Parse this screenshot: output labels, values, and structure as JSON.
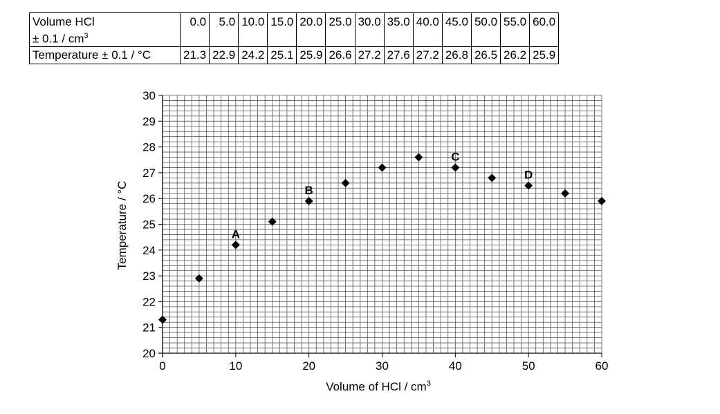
{
  "table": {
    "row1_header_line1": "Volume HCl",
    "row1_header_line2": "± 0.1 / cm",
    "row1_header_sup": "3",
    "row2_header": "Temperature ± 0.1 / °C",
    "volumes": [
      "0.0",
      "5.0",
      "10.0",
      "15.0",
      "20.0",
      "25.0",
      "30.0",
      "35.0",
      "40.0",
      "45.0",
      "50.0",
      "55.0",
      "60.0"
    ],
    "temperatures": [
      "21.3",
      "22.9",
      "24.2",
      "25.1",
      "25.9",
      "26.6",
      "27.2",
      "27.6",
      "27.2",
      "26.8",
      "26.5",
      "26.2",
      "25.9"
    ]
  },
  "chart_data": {
    "type": "scatter",
    "title": "",
    "xlabel": "Volume of HCl / cm",
    "xlabel_sup": "3",
    "ylabel": "Temperature / °C",
    "xlim": [
      0,
      60
    ],
    "ylim": [
      20,
      30
    ],
    "x_ticks": [
      "0",
      "10",
      "20",
      "30",
      "40",
      "50",
      "60"
    ],
    "y_ticks": [
      "20",
      "21",
      "22",
      "23",
      "24",
      "25",
      "26",
      "27",
      "28",
      "29",
      "30"
    ],
    "grid": true,
    "marker": "diamond",
    "marker_color": "#000000",
    "points": [
      {
        "x": 0,
        "y": 21.3
      },
      {
        "x": 5,
        "y": 22.9
      },
      {
        "x": 10,
        "y": 24.2
      },
      {
        "x": 15,
        "y": 25.1
      },
      {
        "x": 20,
        "y": 25.9
      },
      {
        "x": 25,
        "y": 26.6
      },
      {
        "x": 30,
        "y": 27.2
      },
      {
        "x": 35,
        "y": 27.6
      },
      {
        "x": 40,
        "y": 27.2
      },
      {
        "x": 45,
        "y": 26.8
      },
      {
        "x": 50,
        "y": 26.5
      },
      {
        "x": 55,
        "y": 26.2
      },
      {
        "x": 60,
        "y": 25.9
      }
    ],
    "annotations": [
      {
        "text": "A",
        "x": 10,
        "y": 24.2
      },
      {
        "text": "B",
        "x": 20,
        "y": 25.9
      },
      {
        "text": "C",
        "x": 40,
        "y": 27.2
      },
      {
        "text": "D",
        "x": 50,
        "y": 26.5
      }
    ]
  }
}
